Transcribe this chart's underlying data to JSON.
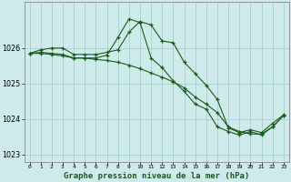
{
  "title": "Graphe pression niveau de la mer (hPa)",
  "bg_color": "#ceeaea",
  "grid_color": "#aacfcf",
  "line_color": "#1a5c1a",
  "xlim": [
    -0.5,
    23.5
  ],
  "ylim": [
    1022.8,
    1027.3
  ],
  "yticks": [
    1023,
    1024,
    1025,
    1026
  ],
  "xticks": [
    0,
    1,
    2,
    3,
    4,
    5,
    6,
    7,
    8,
    9,
    10,
    11,
    12,
    13,
    14,
    15,
    16,
    17,
    18,
    19,
    20,
    21,
    22,
    23
  ],
  "series": [
    {
      "x": [
        0,
        1,
        2,
        3,
        4,
        5,
        6,
        7,
        8,
        9,
        10,
        11,
        12,
        13,
        14,
        15,
        16,
        17,
        18,
        19,
        20,
        21,
        22,
        23
      ],
      "y": [
        1025.85,
        1025.95,
        1026.0,
        1026.0,
        1025.82,
        1025.82,
        1025.82,
        1025.88,
        1025.95,
        1026.45,
        1026.75,
        1026.65,
        1026.2,
        1026.15,
        1025.6,
        1025.28,
        1024.95,
        1024.55,
        1023.75,
        1023.62,
        1023.7,
        1023.62,
        1023.88,
        1024.12
      ]
    },
    {
      "x": [
        0,
        1,
        2,
        3,
        4,
        5,
        6,
        7,
        8,
        9,
        10,
        11,
        12,
        13,
        14,
        15,
        16,
        17,
        18,
        19,
        20,
        21,
        22,
        23
      ],
      "y": [
        1025.85,
        1025.85,
        1025.82,
        1025.78,
        1025.72,
        1025.72,
        1025.68,
        1025.65,
        1025.6,
        1025.52,
        1025.42,
        1025.3,
        1025.18,
        1025.05,
        1024.88,
        1024.62,
        1024.42,
        1024.18,
        1023.78,
        1023.65,
        1023.58,
        1023.58,
        1023.78,
        1024.1
      ]
    },
    {
      "x": [
        0,
        1,
        2,
        3,
        4,
        5,
        6,
        7,
        8,
        9,
        10,
        11,
        12,
        13,
        14,
        15,
        16,
        17,
        18,
        19,
        20,
        21,
        22,
        23
      ],
      "y": [
        1025.85,
        1025.88,
        1025.85,
        1025.82,
        1025.72,
        1025.72,
        1025.72,
        1025.8,
        1026.3,
        1026.82,
        1026.72,
        1025.72,
        1025.45,
        1025.08,
        1024.78,
        1024.42,
        1024.28,
        1023.78,
        1023.65,
        1023.55,
        1023.65,
        1023.55,
        1023.78,
        1024.1
      ]
    }
  ]
}
